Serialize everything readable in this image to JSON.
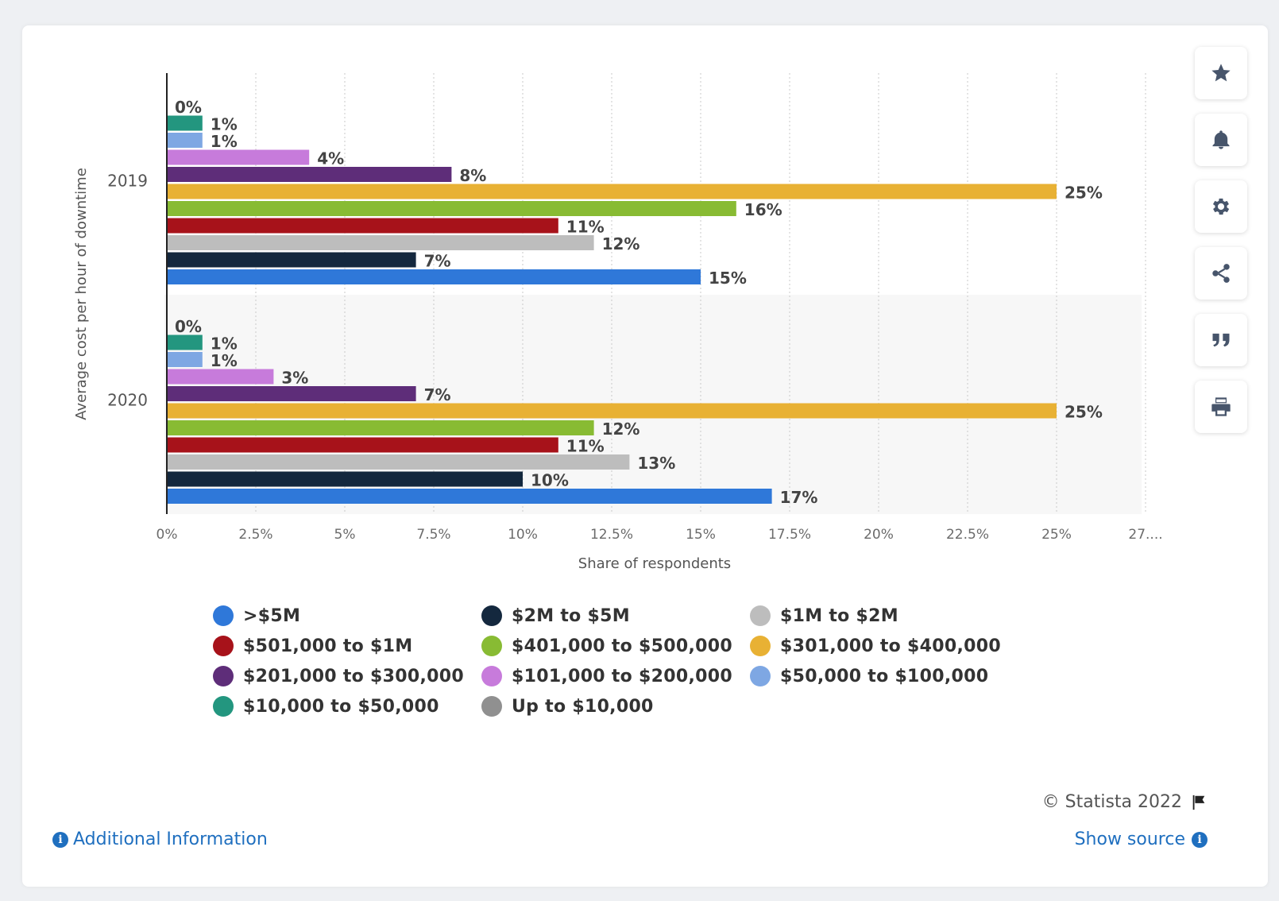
{
  "toolbar": {
    "buttons": [
      {
        "name": "favorite",
        "icon": "star-icon"
      },
      {
        "name": "notifications",
        "icon": "bell-icon"
      },
      {
        "name": "settings",
        "icon": "gear-icon"
      },
      {
        "name": "share",
        "icon": "share-icon"
      },
      {
        "name": "cite",
        "icon": "quote-icon"
      },
      {
        "name": "print",
        "icon": "printer-icon"
      }
    ]
  },
  "footer": {
    "copyright": "© Statista 2022",
    "additional_info": "Additional Information",
    "show_source": "Show source"
  },
  "chart_data": {
    "type": "bar",
    "orientation": "horizontal",
    "title": "",
    "xlabel": "Share of respondents",
    "ylabel": "Average cost per hour of downtime",
    "categories": [
      "2019",
      "2020"
    ],
    "xlim": [
      0,
      27.5
    ],
    "x_ticks": [
      "0%",
      "2.5%",
      "5%",
      "7.5%",
      "10%",
      "12.5%",
      "15%",
      "17.5%",
      "20%",
      "22.5%",
      "25%",
      "27...."
    ],
    "grid": true,
    "legend_position": "bottom",
    "series": [
      {
        "name": "Up to $10,000",
        "color": "#909090",
        "values": [
          0,
          0
        ]
      },
      {
        "name": "$10,000 to $50,000",
        "color": "#23967f",
        "values": [
          1,
          1
        ]
      },
      {
        "name": "$50,000 to $100,000",
        "color": "#7ea7e3",
        "values": [
          1,
          1
        ]
      },
      {
        "name": "$101,000 to $200,000",
        "color": "#c77bdb",
        "values": [
          4,
          3
        ]
      },
      {
        "name": "$201,000 to $300,000",
        "color": "#5e2d79",
        "values": [
          8,
          7
        ]
      },
      {
        "name": "$301,000 to $400,000",
        "color": "#e8b134",
        "values": [
          25,
          25
        ]
      },
      {
        "name": "$401,000 to $500,000",
        "color": "#88bb33",
        "values": [
          16,
          12
        ]
      },
      {
        "name": "$501,000 to $1M",
        "color": "#a7121a",
        "values": [
          11,
          11
        ]
      },
      {
        "name": "$1M to $2M",
        "color": "#bdbdbd",
        "values": [
          12,
          13
        ]
      },
      {
        "name": "$2M to $5M",
        "color": "#14283e",
        "values": [
          7,
          10
        ]
      },
      {
        "name": ">$5M",
        "color": "#2f78d9",
        "values": [
          15,
          17
        ]
      }
    ],
    "data_labels": [
      [
        "0%",
        "1%",
        "1%",
        "4%",
        "8%",
        "25%",
        "16%",
        "11%",
        "12%",
        "7%",
        "15%"
      ],
      [
        "0%",
        "1%",
        "1%",
        "3%",
        "7%",
        "25%",
        "12%",
        "11%",
        "13%",
        "10%",
        "17%"
      ]
    ],
    "legend_order": [
      ">$5M",
      "$2M to $5M",
      "$1M to $2M",
      "$501,000 to $1M",
      "$401,000 to $500,000",
      "$301,000 to $400,000",
      "$201,000 to $300,000",
      "$101,000 to $200,000",
      "$50,000 to $100,000",
      "$10,000 to $50,000",
      "Up to $10,000"
    ]
  }
}
